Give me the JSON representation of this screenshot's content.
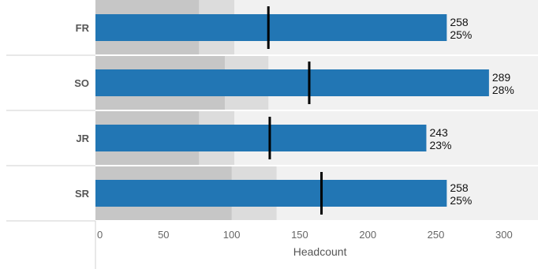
{
  "chart_data": {
    "type": "bar",
    "subtype": "bullet",
    "orientation": "horizontal",
    "categories": [
      "FR",
      "SO",
      "JR",
      "SR"
    ],
    "series": [
      {
        "values": [
          258,
          289,
          243,
          258
        ],
        "value_labels": [
          "258",
          "289",
          "243",
          "258"
        ],
        "percent_labels": [
          "25%",
          "28%",
          "23%",
          "25%"
        ]
      }
    ],
    "reference_markers": [
      127,
      157,
      128,
      166
    ],
    "background_bands": [
      {
        "band1_end": 76,
        "band2_end": 102
      },
      {
        "band1_end": 95,
        "band2_end": 127
      },
      {
        "band1_end": 76,
        "band2_end": 102
      },
      {
        "band1_end": 100,
        "band2_end": 133
      }
    ],
    "xlabel": "Headcount",
    "xlim": [
      0,
      325
    ],
    "xticks": [
      "0",
      "50",
      "100",
      "150",
      "200",
      "250",
      "300"
    ],
    "grid": false,
    "legend": "none",
    "colors": {
      "bar": "#2276b4",
      "band1": "#c6c6c6",
      "band2": "#dcdcdc",
      "band3": "#f1f1f1",
      "marker": "#000000",
      "divider": "#d2d2d2"
    }
  }
}
